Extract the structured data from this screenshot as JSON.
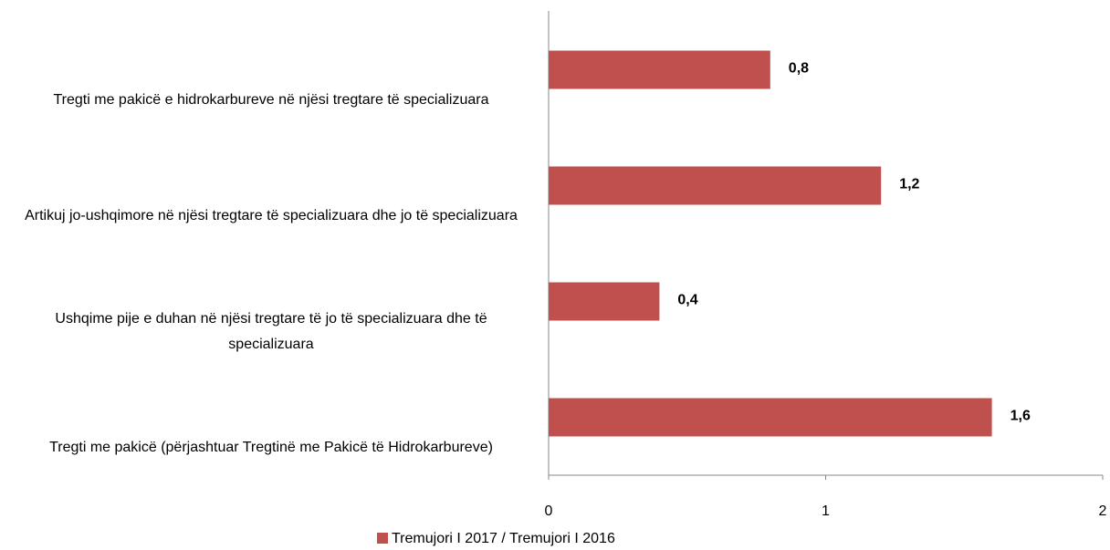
{
  "chart_data": {
    "type": "bar",
    "orientation": "horizontal",
    "categories": [
      "Tregti me pakicë e hidrokarbureve në njësi tregtare të specializuara",
      "Artikuj jo-ushqimore në njësi tregtare të specializuara dhe jo të specializuara",
      "Ushqime pije e duhan në njësi tregtare të jo të specializuara dhe të specializuara",
      "Tregti me pakicë (përjashtuar Tregtinë me Pakicë të Hidrokarbureve)"
    ],
    "series": [
      {
        "name": "Tremujori I 2017 / Tremujori I 2016",
        "color": "#c0504d",
        "values": [
          0.8,
          1.2,
          0.4,
          1.6
        ],
        "value_labels": [
          "0,8",
          "1,2",
          "0,4",
          "1,6"
        ]
      }
    ],
    "xlim": [
      0,
      2
    ],
    "xticks": [
      0,
      1,
      2
    ],
    "grid": false,
    "legend": "bottom"
  }
}
